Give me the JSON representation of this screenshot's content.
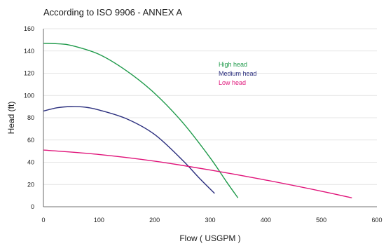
{
  "chart_data": {
    "type": "line",
    "title": "According to ISO 9906 - ANNEX A",
    "xlabel": "Flow ( USGPM )",
    "ylabel": "Head (ft)",
    "xlim": [
      0,
      600
    ],
    "ylim": [
      0,
      160
    ],
    "xticks": [
      0,
      100,
      200,
      300,
      400,
      500,
      600
    ],
    "yticks": [
      0,
      20,
      40,
      60,
      80,
      100,
      120,
      140,
      160
    ],
    "grid": "horizontal",
    "legend_position": "upper-middle-right",
    "series": [
      {
        "name": "High head",
        "color": "#1f9a4a",
        "x": [
          0,
          25,
          50,
          100,
          150,
          200,
          250,
          300,
          330,
          350
        ],
        "y": [
          147,
          146.5,
          145,
          137,
          122,
          102,
          76,
          44,
          22,
          8
        ]
      },
      {
        "name": "Medium head",
        "color": "#2b2f7e",
        "x": [
          0,
          25,
          50,
          75,
          100,
          150,
          200,
          250,
          280,
          308
        ],
        "y": [
          86,
          89,
          90,
          89.5,
          87,
          79,
          65,
          42,
          26,
          12
        ]
      },
      {
        "name": "Low head",
        "color": "#e0147a",
        "x": [
          0,
          100,
          200,
          300,
          400,
          500,
          555
        ],
        "y": [
          51,
          47,
          41,
          33,
          24,
          14,
          8
        ]
      }
    ]
  }
}
